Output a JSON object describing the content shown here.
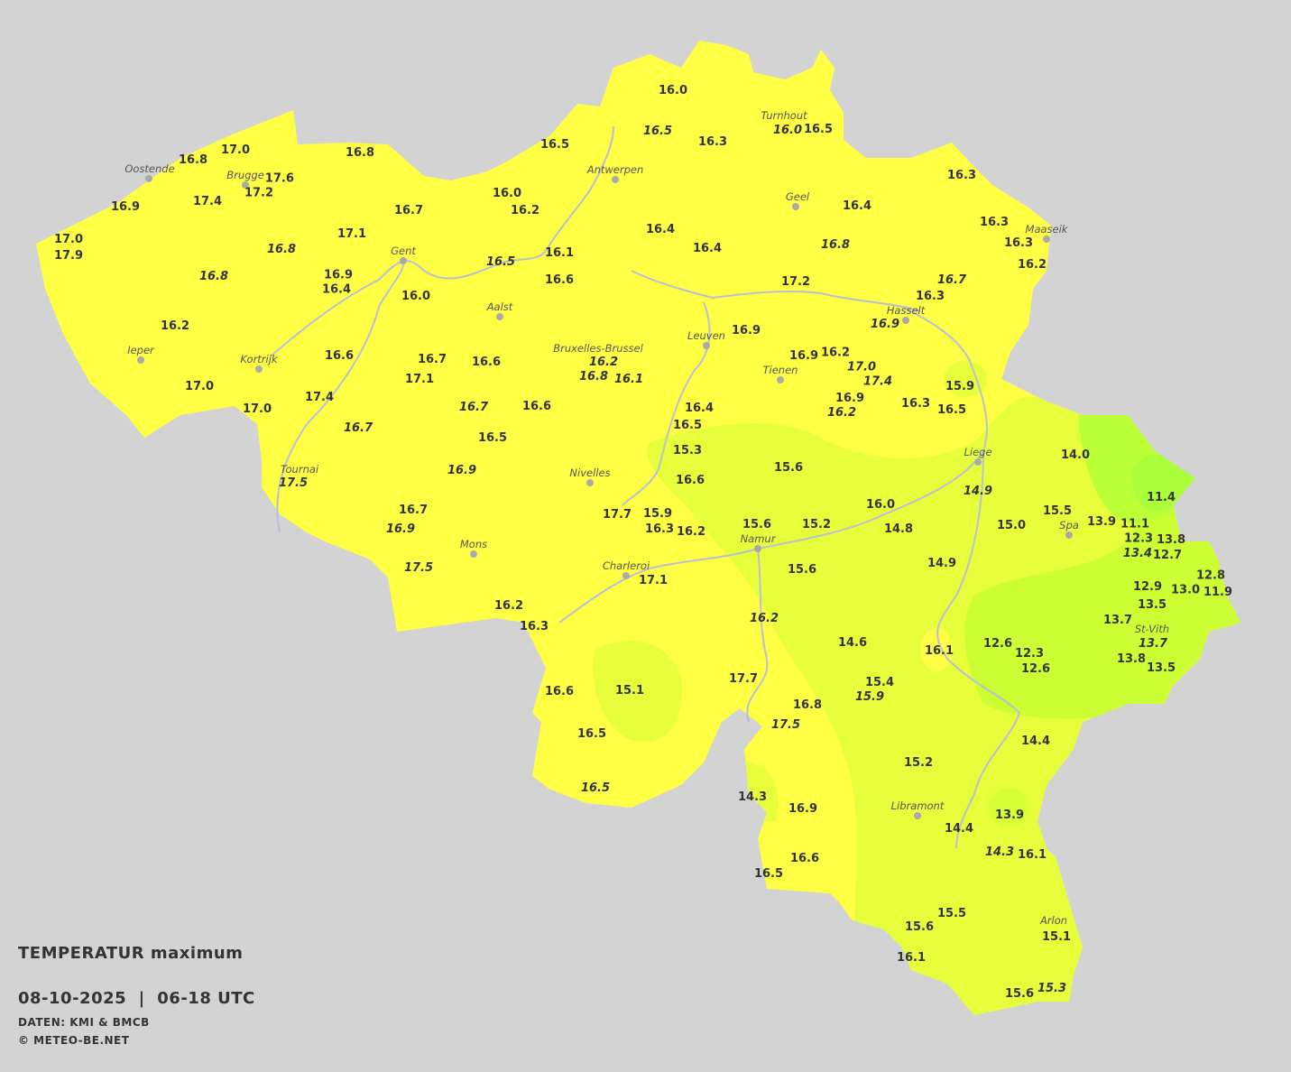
{
  "legend": {
    "title": "TEMPERATUR maximum",
    "date_line": "08-10-2025  |  06-18 UTC",
    "source": "DATEN: KMI & BMCB",
    "copyright": "© METEO-BE.NET"
  },
  "colors": {
    "background": "#d3d3d3",
    "zone_above_16": "#ffff44",
    "zone_14_16": "#e6ff3a",
    "zone_12_14": "#ccff33",
    "zone_below_12": "#aaff3a",
    "rivers": "#b8bfd6",
    "city_dot": "#aaaaaa"
  },
  "cities": [
    "Oostende",
    "Brugge",
    "Gent",
    "Ieper",
    "Kortrijk",
    "Aalst",
    "Bruxelles-Brussel",
    "Antwerpen",
    "Turnhout",
    "Geel",
    "Maaseik",
    "Hasselt",
    "Leuven",
    "Tienen",
    "Liege",
    "Tournai",
    "Nivelles",
    "Mons",
    "Charleroi",
    "Namur",
    "Spa",
    "St-Vith",
    "Libramont",
    "Arlon"
  ],
  "stations": [
    {
      "v": "16.0"
    },
    {
      "v": "16.5",
      "i": true
    },
    {
      "v": "16.3"
    },
    {
      "v": "16.0",
      "i": true
    },
    {
      "v": "16.5"
    },
    {
      "v": "16.5"
    },
    {
      "v": "17.0"
    },
    {
      "v": "16.8"
    },
    {
      "v": "16.8"
    },
    {
      "v": "17.6"
    },
    {
      "v": "17.2"
    },
    {
      "v": "16.9"
    },
    {
      "v": "17.4"
    },
    {
      "v": "16.0"
    },
    {
      "v": "16.2"
    },
    {
      "v": "16.7"
    },
    {
      "v": "16.3"
    },
    {
      "v": "16.4"
    },
    {
      "v": "16.3"
    },
    {
      "v": "16.3"
    },
    {
      "v": "16.2"
    },
    {
      "v": "16.4"
    },
    {
      "v": "16.4"
    },
    {
      "v": "16.8",
      "i": true
    },
    {
      "v": "17.0"
    },
    {
      "v": "17.9"
    },
    {
      "v": "17.1"
    },
    {
      "v": "16.8",
      "i": true
    },
    {
      "v": "16.5",
      "i": true
    },
    {
      "v": "16.1"
    },
    {
      "v": "16.6"
    },
    {
      "v": "16.8",
      "i": true
    },
    {
      "v": "16.9"
    },
    {
      "v": "16.4"
    },
    {
      "v": "16.0"
    },
    {
      "v": "17.2"
    },
    {
      "v": "16.7",
      "i": true
    },
    {
      "v": "16.3"
    },
    {
      "v": "16.9",
      "i": true
    },
    {
      "v": "16.2"
    },
    {
      "v": "16.9"
    },
    {
      "v": "16.6"
    },
    {
      "v": "16.7"
    },
    {
      "v": "16.6"
    },
    {
      "v": "16.2",
      "i": true
    },
    {
      "v": "16.8",
      "i": true
    },
    {
      "v": "16.1",
      "i": true
    },
    {
      "v": "16.9"
    },
    {
      "v": "16.2"
    },
    {
      "v": "17.0",
      "i": true
    },
    {
      "v": "17.4",
      "i": true
    },
    {
      "v": "17.0"
    },
    {
      "v": "17.1"
    },
    {
      "v": "15.9"
    },
    {
      "v": "17.4"
    },
    {
      "v": "16.7",
      "i": true
    },
    {
      "v": "16.6"
    },
    {
      "v": "16.4"
    },
    {
      "v": "16.9"
    },
    {
      "v": "16.2",
      "i": true
    },
    {
      "v": "16.3"
    },
    {
      "v": "16.5"
    },
    {
      "v": "17.0"
    },
    {
      "v": "16.7",
      "i": true
    },
    {
      "v": "16.5"
    },
    {
      "v": "16.5"
    },
    {
      "v": "15.3"
    },
    {
      "v": "14.0"
    },
    {
      "v": "15.6"
    },
    {
      "v": "16.9",
      "i": true
    },
    {
      "v": "16.6"
    },
    {
      "v": "17.5",
      "i": true
    },
    {
      "v": "14.9",
      "i": true
    },
    {
      "v": "11.4"
    },
    {
      "v": "16.0"
    },
    {
      "v": "16.7"
    },
    {
      "v": "17.7"
    },
    {
      "v": "15.9"
    },
    {
      "v": "16.3"
    },
    {
      "v": "16.2"
    },
    {
      "v": "16.9",
      "i": true
    },
    {
      "v": "15.0"
    },
    {
      "v": "15.5"
    },
    {
      "v": "13.9"
    },
    {
      "v": "11.1"
    },
    {
      "v": "15.2"
    },
    {
      "v": "14.8"
    },
    {
      "v": "15.6"
    },
    {
      "v": "12.3"
    },
    {
      "v": "13.8"
    },
    {
      "v": "13.4",
      "i": true
    },
    {
      "v": "12.7"
    },
    {
      "v": "17.5",
      "i": true
    },
    {
      "v": "15.6"
    },
    {
      "v": "14.9"
    },
    {
      "v": "17.1"
    },
    {
      "v": "12.8"
    },
    {
      "v": "12.9"
    },
    {
      "v": "13.0"
    },
    {
      "v": "11.9"
    },
    {
      "v": "13.5"
    },
    {
      "v": "16.2"
    },
    {
      "v": "16.3"
    },
    {
      "v": "16.2",
      "i": true
    },
    {
      "v": "13.7"
    },
    {
      "v": "13.7",
      "i": true
    },
    {
      "v": "14.6"
    },
    {
      "v": "16.1"
    },
    {
      "v": "12.6"
    },
    {
      "v": "12.3"
    },
    {
      "v": "12.6"
    },
    {
      "v": "13.8"
    },
    {
      "v": "13.5"
    },
    {
      "v": "17.7"
    },
    {
      "v": "15.4"
    },
    {
      "v": "15.9",
      "i": true
    },
    {
      "v": "16.6"
    },
    {
      "v": "15.1"
    },
    {
      "v": "16.8"
    },
    {
      "v": "17.5",
      "i": true
    },
    {
      "v": "16.5"
    },
    {
      "v": "14.4"
    },
    {
      "v": "15.2"
    },
    {
      "v": "16.5",
      "i": true
    },
    {
      "v": "14.3"
    },
    {
      "v": "16.9"
    },
    {
      "v": "13.9"
    },
    {
      "v": "14.4"
    },
    {
      "v": "14.3",
      "i": true
    },
    {
      "v": "16.1"
    },
    {
      "v": "16.6"
    },
    {
      "v": "16.5"
    },
    {
      "v": "15.5"
    },
    {
      "v": "15.6"
    },
    {
      "v": "15.1"
    },
    {
      "v": "16.1"
    },
    {
      "v": "15.6"
    },
    {
      "v": "15.3",
      "i": true
    }
  ]
}
